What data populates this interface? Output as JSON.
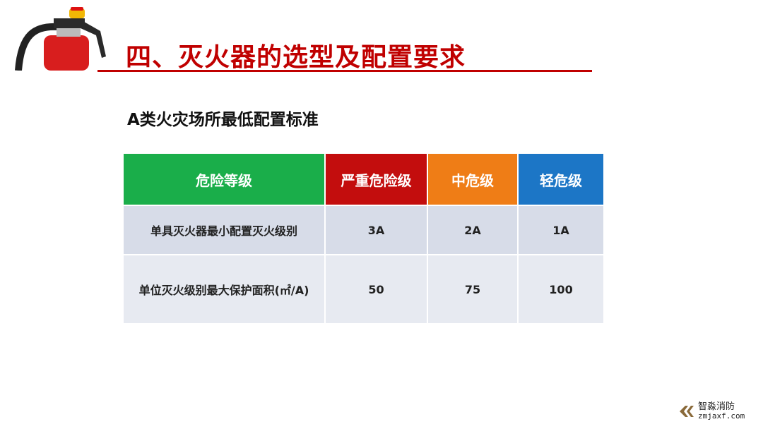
{
  "title": "四、灭火器的选型及配置要求",
  "subtitle": "A类火灾场所最低配置标准",
  "table": {
    "header": [
      "危险等级",
      "严重危险级",
      "中危级",
      "轻危级"
    ],
    "header_colors": [
      "#1aae4a",
      "#c30d0d",
      "#ef7d16",
      "#1c76c6"
    ],
    "rows": [
      [
        "单具灭火器最小配置灭火级别",
        "3A",
        "2A",
        "1A"
      ],
      [
        "单位灭火级别最大保护面积(㎡/A)",
        "50",
        "75",
        "100"
      ]
    ]
  },
  "watermark": {
    "name": "智淼消防",
    "url": "zmjaxf.com"
  }
}
